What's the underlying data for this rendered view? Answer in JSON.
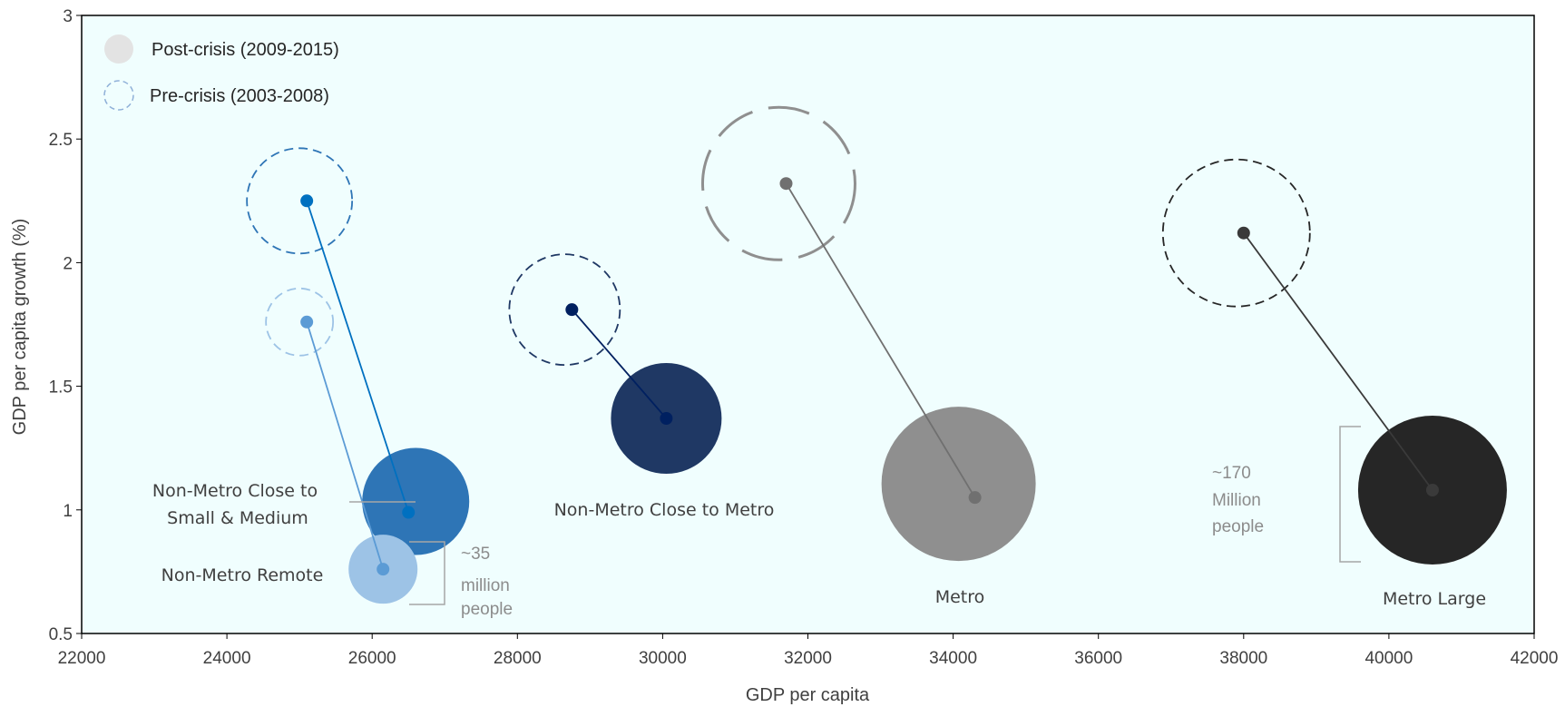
{
  "chart_data": {
    "type": "scatter",
    "xlabel": "GDP per capita",
    "ylabel": "GDP per capita growth (%)",
    "xlim": [
      22000,
      42000
    ],
    "ylim": [
      0.5,
      3
    ],
    "xticks": [
      22000,
      24000,
      26000,
      28000,
      30000,
      32000,
      34000,
      36000,
      38000,
      40000,
      42000
    ],
    "yticks": [
      0.5,
      1,
      1.5,
      2,
      2.5,
      3
    ],
    "ytick_labels": [
      "0.5",
      "1",
      "1.5",
      "2",
      "2.5",
      "3"
    ],
    "grid": false,
    "background": "#f0fefe",
    "legend": {
      "placement": "top-left",
      "post_label": "Post-crisis  (2009-2015)",
      "pre_label": "Pre-crisis  (2003-2008)"
    },
    "series": [
      {
        "name": "Non-Metro Close to Small & Medium",
        "label_lines": [
          "Non-Metro Close to",
          "Small & Medium"
        ],
        "color": "#2e75b6",
        "dot_color": "#0070c0",
        "pre": {
          "x": 25100,
          "y": 2.25
        },
        "post": {
          "x": 26500,
          "y": 0.99
        }
      },
      {
        "name": "Non-Metro Remote",
        "label_lines": [
          "Non-Metro Remote"
        ],
        "color": "#9dc3e6",
        "dot_color": "#5b9bd5",
        "pre": {
          "x": 25100,
          "y": 1.76
        },
        "post": {
          "x": 26150,
          "y": 0.76
        }
      },
      {
        "name": "Non-Metro Close to Metro",
        "label_lines": [
          "Non-Metro Close to Metro"
        ],
        "color": "#1f3864",
        "dot_color": "#002060",
        "pre": {
          "x": 28750,
          "y": 1.81
        },
        "post": {
          "x": 30050,
          "y": 1.37
        }
      },
      {
        "name": "Metro",
        "label_lines": [
          "Metro"
        ],
        "color": "#8f8f8f",
        "dot_color": "#707070",
        "pre": {
          "x": 31700,
          "y": 2.32
        },
        "post": {
          "x": 34300,
          "y": 1.05
        }
      },
      {
        "name": "Metro Large",
        "label_lines": [
          "Metro Large"
        ],
        "color": "#262626",
        "dot_color": "#3a3a3a",
        "pre": {
          "x": 38000,
          "y": 2.12
        },
        "post": {
          "x": 40600,
          "y": 1.08
        }
      }
    ],
    "annotations": [
      {
        "lines": [
          "~35",
          "million",
          "people"
        ]
      },
      {
        "lines": [
          "~170",
          "Million",
          "people"
        ]
      }
    ]
  }
}
